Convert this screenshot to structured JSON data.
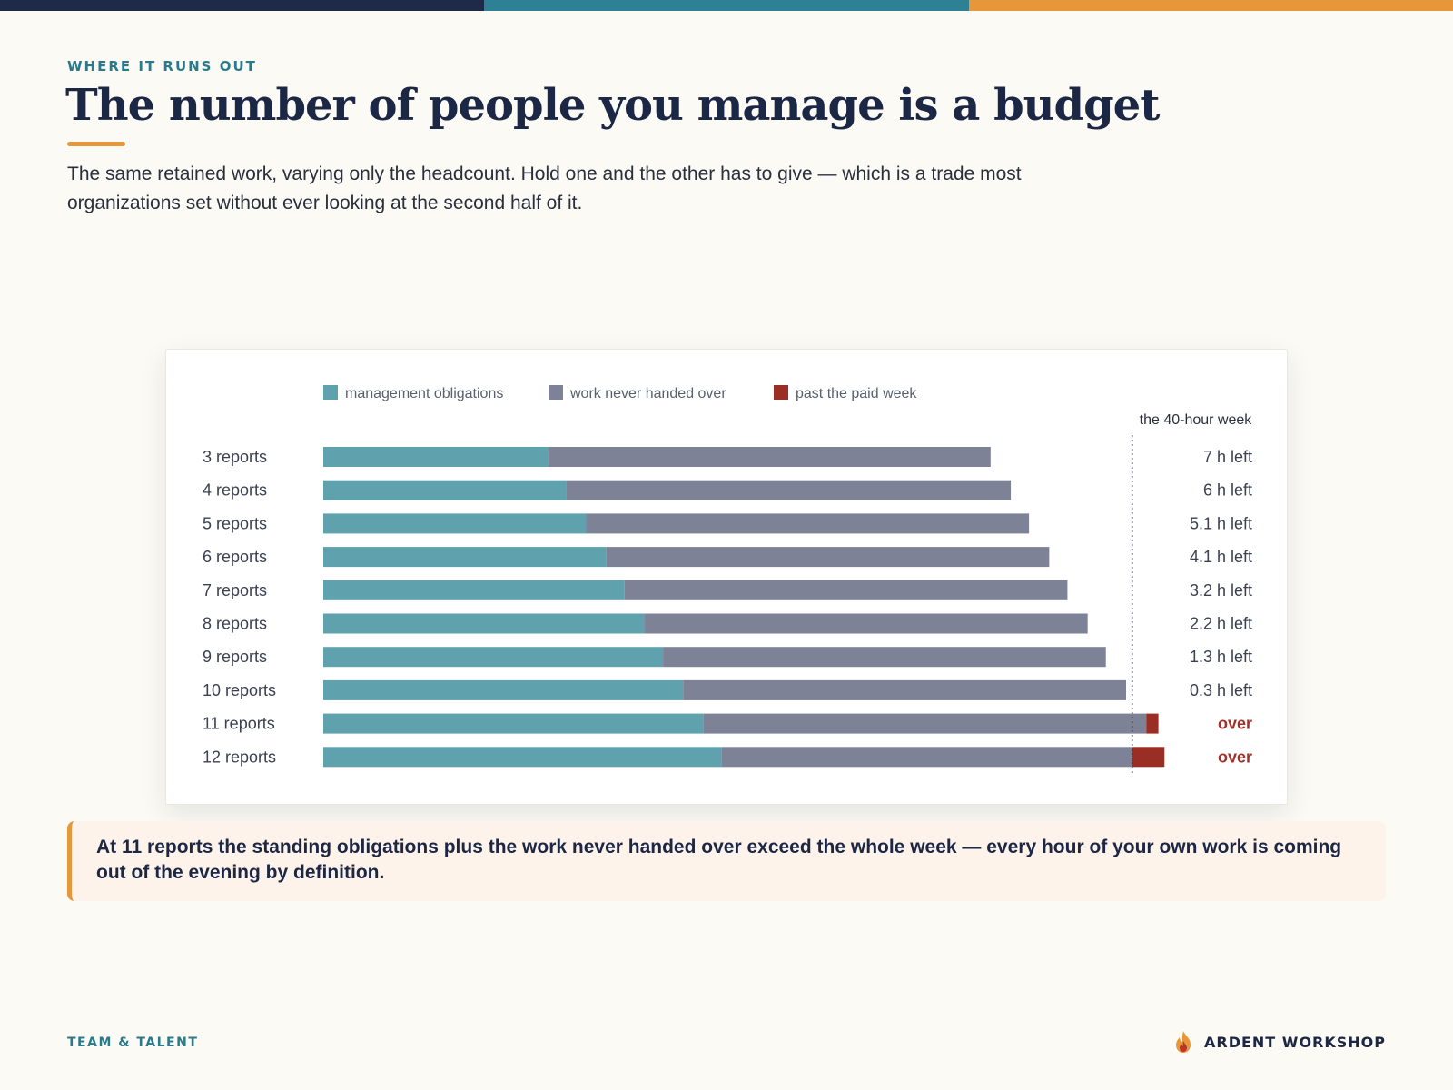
{
  "colors": {
    "navy": "#1f2a48",
    "teal": "#2e8195",
    "orange": "#e8963a",
    "management": "#5fa1ad",
    "never_handed": "#7e8296",
    "past_week": "#9b2e24",
    "over_text": "#a0302a"
  },
  "header": {
    "eyebrow": "WHERE IT RUNS OUT",
    "title": "The number of people you manage is a budget",
    "subtitle": "The same retained work, varying only the headcount. Hold one and the other has to give — which is a trade most organizations set without ever looking at the second half of it."
  },
  "chart_data": {
    "type": "bar",
    "orientation": "horizontal",
    "stacked": true,
    "unit": "hours per week",
    "legend": [
      "management obligations",
      "work never handed over",
      "past the paid week"
    ],
    "legend_position": "top",
    "reference_line": {
      "value": 40,
      "label": "the 40-hour week"
    },
    "xlim": [
      0,
      45
    ],
    "categories": [
      "3 reports",
      "4 reports",
      "5 reports",
      "6 reports",
      "7 reports",
      "8 reports",
      "9 reports",
      "10 reports",
      "11 reports",
      "12 reports"
    ],
    "series": [
      {
        "name": "management obligations",
        "values": [
          11.1,
          12.0,
          13.0,
          14.0,
          14.9,
          15.9,
          16.8,
          17.8,
          18.8,
          19.7
        ]
      },
      {
        "name": "work never handed over",
        "values": [
          21.9,
          22.0,
          21.9,
          21.9,
          21.9,
          21.9,
          21.9,
          21.9,
          21.9,
          20.3
        ]
      },
      {
        "name": "past the paid week",
        "values": [
          0,
          0,
          0,
          0,
          0,
          0,
          0,
          0,
          0.6,
          1.6
        ]
      }
    ],
    "row_labels": [
      "7 h left",
      "6 h left",
      "5.1 h left",
      "4.1 h left",
      "3.2 h left",
      "2.2 h left",
      "1.3 h left",
      "0.3 h left",
      "over",
      "over"
    ]
  },
  "callout": {
    "text": "At 11 reports the standing obligations plus the work never handed over exceed the whole week — every hour of your own work is coming out of the evening by definition."
  },
  "footer": {
    "left": "TEAM & TALENT",
    "brand": "ARDENT WORKSHOP",
    "brand_icon": "flame-icon"
  }
}
